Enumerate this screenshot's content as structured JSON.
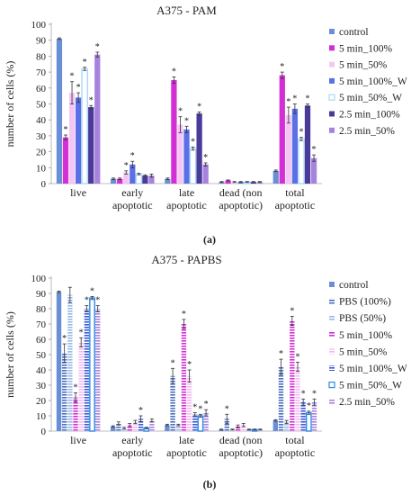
{
  "figure": {
    "panel_a_label": "(a)",
    "panel_b_label": "(b)",
    "asterisk": "*"
  },
  "chart_data": [
    {
      "type": "bar",
      "title": "A375 - PAM",
      "ylabel": "number of cells (%)",
      "xlabel": "",
      "ylim": [
        0,
        100
      ],
      "yticks": [
        0,
        10,
        20,
        30,
        40,
        50,
        60,
        70,
        80,
        90,
        100
      ],
      "grid": false,
      "legend_position": "right",
      "categories": [
        [
          "live"
        ],
        [
          "early",
          "apoptotic"
        ],
        [
          "late",
          "apoptotic"
        ],
        [
          "dead (non",
          "apoptotic)"
        ],
        [
          "total",
          "apoptotic"
        ]
      ],
      "series": [
        {
          "name": "control",
          "color": "#6b8fd6",
          "pattern": "solid",
          "values": [
            91,
            3,
            3,
            1,
            8
          ],
          "errors": [
            0.5,
            0.5,
            0.5,
            0.3,
            0.5
          ],
          "significant": [
            false,
            false,
            false,
            false,
            false
          ]
        },
        {
          "name": "5 min_100%",
          "color": "#d42fd4",
          "pattern": "solid",
          "values": [
            29,
            3,
            65,
            2,
            68
          ],
          "errors": [
            1.5,
            0.5,
            2,
            0.3,
            2
          ],
          "significant": [
            true,
            false,
            true,
            false,
            true
          ]
        },
        {
          "name": "5 min_50%",
          "color": "#f4c6f4",
          "pattern": "solid",
          "values": [
            57,
            7,
            37,
            1,
            43
          ],
          "errors": [
            7,
            1,
            5,
            0.3,
            5
          ],
          "significant": [
            true,
            true,
            true,
            false,
            true
          ]
        },
        {
          "name": "5 min_100%_W",
          "color": "#5b6fe6",
          "pattern": "solid",
          "values": [
            54,
            12,
            34,
            1,
            47
          ],
          "errors": [
            3,
            2,
            2,
            0.3,
            3
          ],
          "significant": [
            true,
            true,
            true,
            false,
            true
          ]
        },
        {
          "name": "5 min_50%_W",
          "color": "#a8d8f8",
          "pattern": "outline",
          "values": [
            72,
            6,
            22,
            1,
            28
          ],
          "errors": [
            1,
            0.5,
            1,
            0.3,
            1
          ],
          "significant": [
            true,
            false,
            true,
            false,
            true
          ]
        },
        {
          "name": "2.5 min_100%",
          "color": "#4a3a9a",
          "pattern": "solid",
          "values": [
            48,
            5,
            44,
            1,
            49
          ],
          "errors": [
            1,
            0.5,
            1,
            0.3,
            1
          ],
          "significant": [
            true,
            false,
            true,
            false,
            true
          ]
        },
        {
          "name": "2.5 min_50%",
          "color": "#a883dd",
          "pattern": "solid",
          "values": [
            81,
            5,
            12,
            1,
            16
          ],
          "errors": [
            1.5,
            1,
            1,
            0.3,
            2
          ],
          "significant": [
            true,
            false,
            true,
            false,
            true
          ]
        }
      ]
    },
    {
      "type": "bar",
      "title": "A375 - PAPBS",
      "ylabel": "number of cells (%)",
      "xlabel": "",
      "ylim": [
        0,
        100
      ],
      "yticks": [
        0,
        10,
        20,
        30,
        40,
        50,
        60,
        70,
        80,
        90,
        100
      ],
      "grid": false,
      "legend_position": "right",
      "categories": [
        [
          "live"
        ],
        [
          "early",
          "apoptotic"
        ],
        [
          "late",
          "apoptotic"
        ],
        [
          "dead (non",
          "apoptotic)"
        ],
        [
          "total",
          "apoptotic"
        ]
      ],
      "series": [
        {
          "name": "control",
          "color": "#6b8fd6",
          "pattern": "solid",
          "values": [
            91,
            3,
            4,
            1,
            7
          ],
          "errors": [
            0.5,
            0.5,
            0.5,
            0.3,
            0.5
          ],
          "significant": [
            false,
            false,
            false,
            false,
            false
          ]
        },
        {
          "name": "PBS (100%)",
          "color": "#4a6fc0",
          "pattern": "hatched",
          "values": [
            51,
            5,
            36,
            8,
            42
          ],
          "errors": [
            6,
            1,
            5,
            3,
            5
          ],
          "significant": [
            true,
            false,
            true,
            true,
            true
          ]
        },
        {
          "name": "PBS (50%)",
          "color": "#9ab8e8",
          "pattern": "hatched",
          "values": [
            89,
            2,
            4,
            1,
            6
          ],
          "errors": [
            5,
            0.5,
            0.5,
            0.3,
            1
          ],
          "significant": [
            false,
            false,
            false,
            false,
            false
          ]
        },
        {
          "name": "5 min_100%",
          "color": "#d42fd4",
          "pattern": "hatched",
          "values": [
            22,
            4,
            70,
            3,
            72
          ],
          "errors": [
            3,
            1,
            3,
            1,
            3
          ],
          "significant": [
            true,
            false,
            true,
            false,
            true
          ]
        },
        {
          "name": "5 min_50%",
          "color": "#f4b8f4",
          "pattern": "hatched",
          "values": [
            58,
            6,
            36,
            4,
            42
          ],
          "errors": [
            3,
            1,
            4,
            1,
            3
          ],
          "significant": [
            true,
            false,
            true,
            false,
            true
          ]
        },
        {
          "name": "5 min_100%_W",
          "color": "#3a5ad6",
          "pattern": "hatched",
          "values": [
            80,
            8,
            11,
            1,
            19
          ],
          "errors": [
            2,
            2,
            1,
            0.3,
            2
          ],
          "significant": [
            true,
            true,
            true,
            false,
            true
          ]
        },
        {
          "name": "5 min_50%_W",
          "color": "#2a8ae6",
          "pattern": "outline",
          "values": [
            87,
            2,
            10,
            1,
            12
          ],
          "errors": [
            1,
            0.5,
            1,
            0.3,
            1
          ],
          "significant": [
            true,
            false,
            true,
            false,
            true
          ]
        },
        {
          "name": "2.5 min_50%",
          "color": "#a883dd",
          "pattern": "hatched",
          "values": [
            80,
            7,
            12,
            1,
            19
          ],
          "errors": [
            2,
            1,
            2,
            0.3,
            2
          ],
          "significant": [
            true,
            false,
            true,
            false,
            true
          ]
        }
      ]
    }
  ]
}
